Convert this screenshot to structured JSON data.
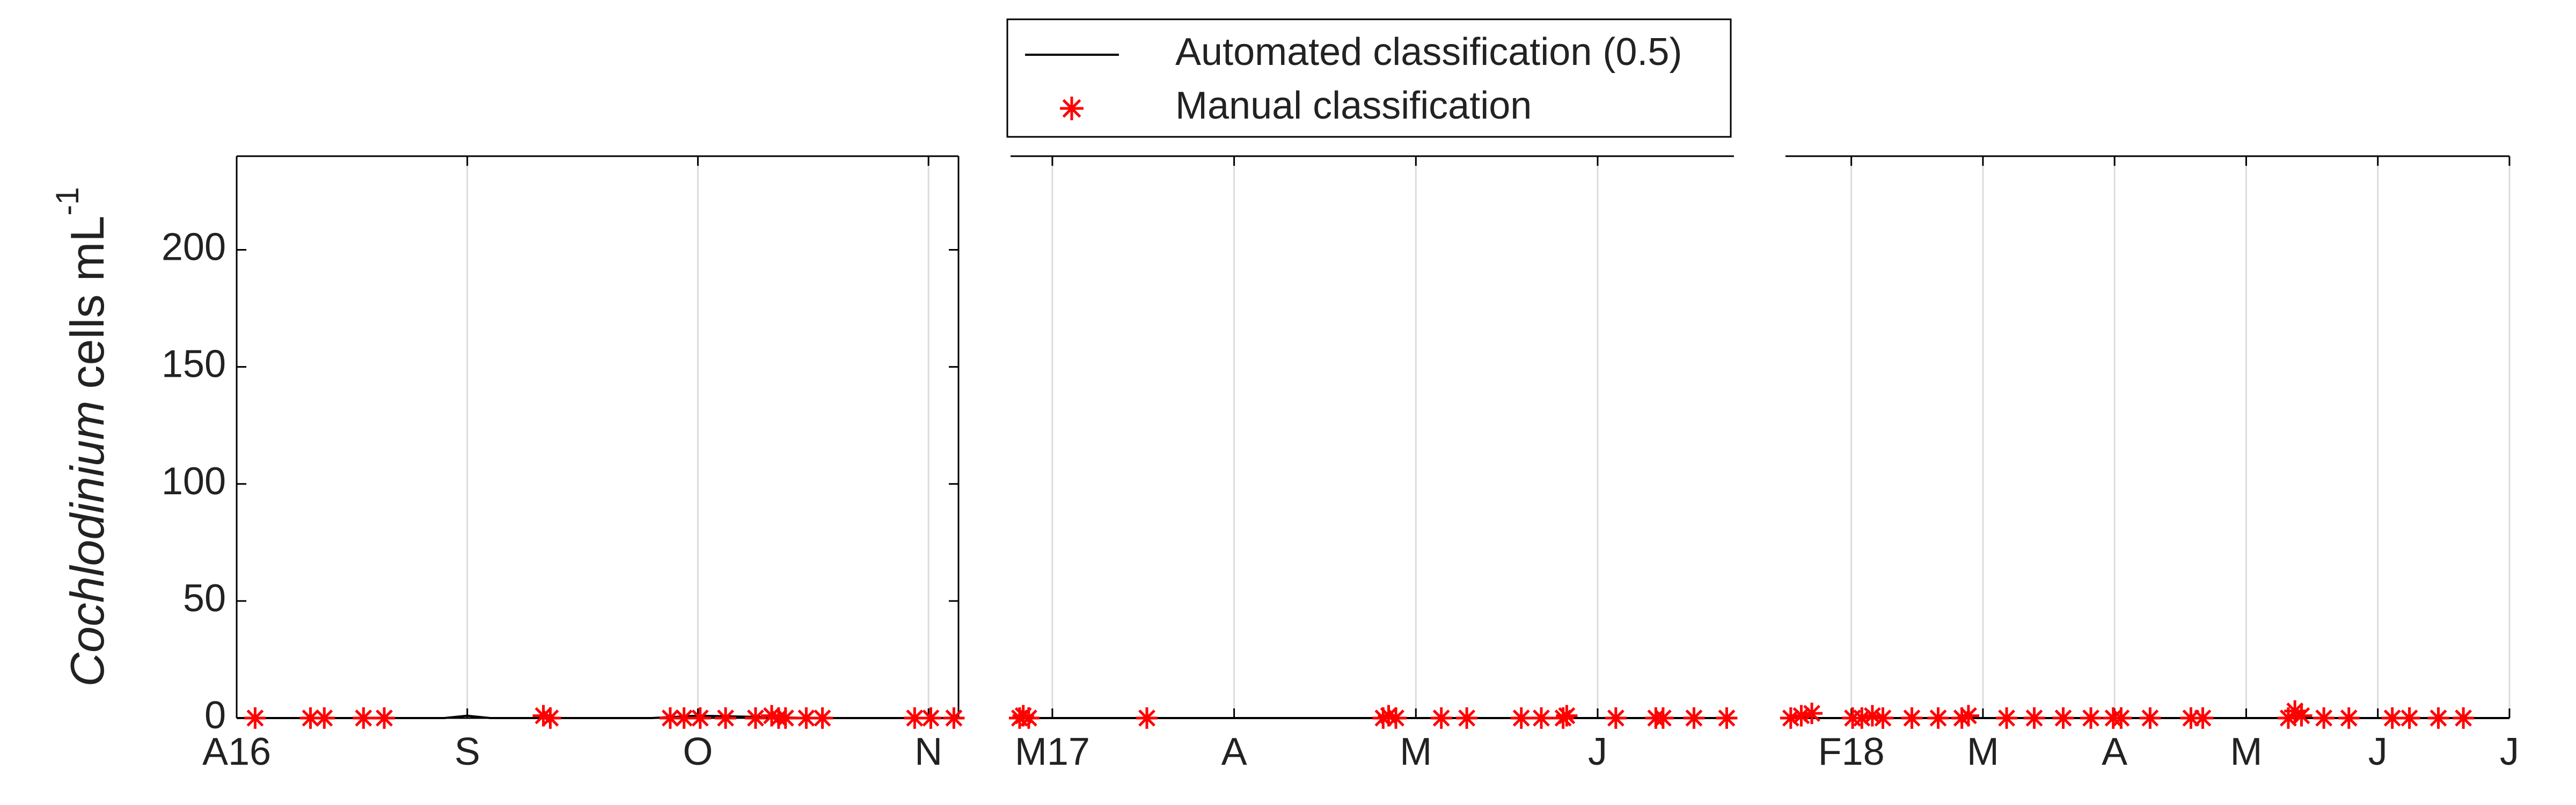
{
  "chart_data": [
    {
      "type": "line",
      "ylabel": [
        "Cochlodinium",
        "cells mL",
        "-1"
      ],
      "xlim": [
        0,
        3.13
      ],
      "xticks": [
        {
          "value": 0,
          "label": "A16"
        },
        {
          "value": 1,
          "label": "S"
        },
        {
          "value": 2,
          "label": "O"
        },
        {
          "value": 3,
          "label": "N"
        }
      ],
      "ylim": [
        0,
        240
      ],
      "yticks": [
        0,
        50,
        100,
        150,
        200
      ],
      "box": true,
      "grid": true,
      "series": [
        {
          "name": "Automated classification (0.5)",
          "color": "#000000",
          "style": "line",
          "x": [
            0,
            0.9,
            1.0,
            1.1,
            1.8,
            2.0,
            2.5,
            3.13
          ],
          "values": [
            0,
            0,
            1,
            0,
            0,
            1,
            0,
            0
          ]
        },
        {
          "name": "Manual classification",
          "color": "#ff0000",
          "style": "asterisk",
          "x": [
            0.08,
            0.32,
            0.38,
            0.55,
            0.64,
            1.33,
            1.36,
            1.88,
            1.94,
            2.01,
            2.12,
            2.25,
            2.32,
            2.35,
            2.38,
            2.47,
            2.54,
            2.94,
            3.01,
            3.11
          ],
          "values": [
            0,
            0,
            0,
            0,
            0,
            1,
            0,
            0,
            0,
            0,
            0,
            0,
            1,
            0,
            0,
            0,
            0,
            0,
            0,
            0
          ]
        }
      ]
    },
    {
      "type": "line",
      "xlim": [
        -0.23,
        3.75
      ],
      "xticks": [
        {
          "value": 0,
          "label": "M17"
        },
        {
          "value": 1,
          "label": "A"
        },
        {
          "value": 2,
          "label": "M"
        },
        {
          "value": 3,
          "label": "J"
        }
      ],
      "ylim": [
        0,
        240
      ],
      "grid": true,
      "series": [
        {
          "name": "Automated classification (0.5)",
          "color": "#000000",
          "style": "line",
          "x": [
            -0.23,
            1.0,
            2.0,
            3.0,
            3.75
          ],
          "values": [
            0,
            0,
            0,
            0,
            0
          ]
        },
        {
          "name": "Manual classification",
          "color": "#ff0000",
          "style": "asterisk",
          "x": [
            -0.18,
            -0.16,
            -0.13,
            0.52,
            1.82,
            1.85,
            1.89,
            2.14,
            2.28,
            2.58,
            2.69,
            2.81,
            2.83,
            3.1,
            3.32,
            3.36,
            3.53,
            3.71
          ],
          "values": [
            0,
            1,
            0,
            0,
            0,
            1,
            0,
            0,
            0,
            0,
            0,
            0,
            1,
            0,
            0,
            0,
            0,
            0
          ]
        }
      ]
    },
    {
      "type": "line",
      "xlim": [
        -0.5,
        5
      ],
      "xticks": [
        {
          "value": 0,
          "label": "F18"
        },
        {
          "value": 1,
          "label": "M"
        },
        {
          "value": 2,
          "label": "A"
        },
        {
          "value": 3,
          "label": "M"
        },
        {
          "value": 4,
          "label": "J"
        },
        {
          "value": 5,
          "label": "J"
        }
      ],
      "ylim": [
        0,
        240
      ],
      "grid": true,
      "series": [
        {
          "name": "Automated classification (0.5)",
          "color": "#000000",
          "style": "line",
          "x": [
            -0.5,
            1.0,
            2.0,
            3.0,
            4.0,
            5.0
          ],
          "values": [
            0,
            0,
            0,
            0,
            0,
            0
          ]
        },
        {
          "name": "Manual classification",
          "color": "#ff0000",
          "style": "asterisk",
          "x": [
            -0.46,
            -0.38,
            -0.3,
            0.01,
            0.08,
            0.16,
            0.24,
            0.46,
            0.66,
            0.84,
            0.89,
            1.18,
            1.39,
            1.61,
            1.82,
            1.99,
            2.05,
            2.27,
            2.58,
            2.67,
            3.32,
            3.37,
            3.42,
            3.59,
            3.78,
            4.11,
            4.24,
            4.46,
            4.65
          ],
          "values": [
            0,
            1,
            2,
            0,
            0,
            1,
            0,
            0,
            0,
            0,
            1,
            0,
            0,
            0,
            0,
            0,
            0,
            0,
            0,
            0,
            0,
            3,
            1,
            0,
            0,
            0,
            0,
            0,
            0
          ]
        }
      ]
    }
  ]
}
